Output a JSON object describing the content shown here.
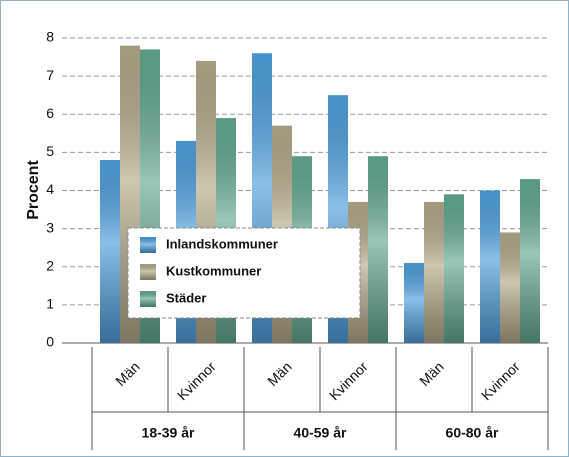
{
  "chart_data": {
    "type": "bar",
    "y_label": "Procent",
    "categories": [
      "Män",
      "Kvinnor",
      "Män",
      "Kvinnor",
      "Män",
      "Kvinnor"
    ],
    "groups": [
      "18-39 år",
      "40-59 år",
      "60-80 år"
    ],
    "series": [
      {
        "name": "Inlandskommuner",
        "color": "#4d9fdc",
        "values": [
          4.8,
          5.3,
          7.6,
          6.5,
          2.1,
          4.0
        ]
      },
      {
        "name": "Kustkommuner",
        "color": "#b3a888",
        "values": [
          7.8,
          7.4,
          5.7,
          3.7,
          3.7,
          2.9
        ]
      },
      {
        "name": "Städer",
        "color": "#62a893",
        "values": [
          7.7,
          5.9,
          4.9,
          4.9,
          3.9,
          4.3
        ]
      }
    ],
    "ylim": [
      0,
      8
    ],
    "yticks": [
      0,
      1,
      2,
      3,
      4,
      5,
      6,
      7,
      8
    ],
    "grid": true
  }
}
